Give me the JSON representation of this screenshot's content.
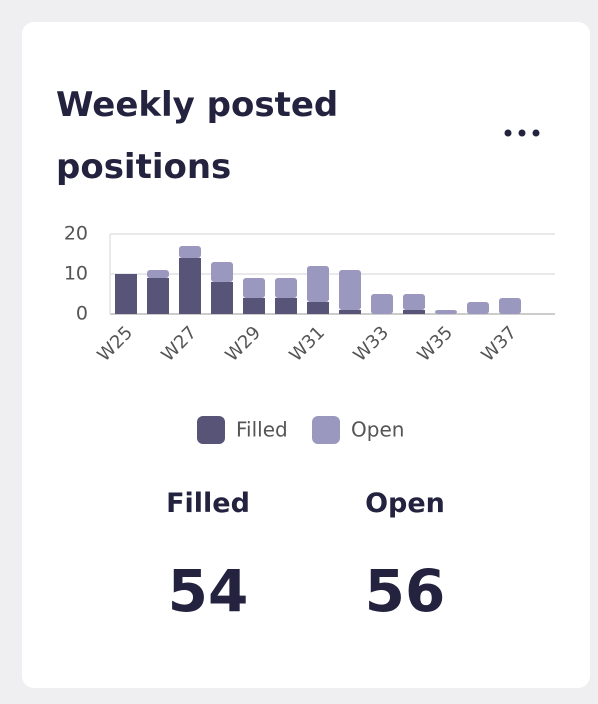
{
  "card": {
    "title": "Weekly posted positions"
  },
  "chart_data": {
    "type": "bar",
    "stacked": true,
    "categories": [
      "W25",
      null,
      "W27",
      null,
      "W29",
      null,
      "W31",
      null,
      "W33",
      null,
      "W35",
      null,
      "W37"
    ],
    "series": [
      {
        "name": "Filled",
        "color": "#575477",
        "values": [
          10,
          9,
          14,
          8,
          4,
          4,
          3,
          1,
          0,
          1,
          0,
          0,
          0
        ]
      },
      {
        "name": "Open",
        "color": "#9b98c0",
        "values": [
          0,
          2,
          3,
          5,
          5,
          5,
          9,
          10,
          5,
          4,
          1,
          3,
          4
        ]
      }
    ],
    "ylim": [
      0,
      20
    ],
    "yticks": [
      0,
      10,
      20
    ],
    "grid": true,
    "legend": "bottom"
  },
  "summary": [
    {
      "label": "Filled",
      "value": 54
    },
    {
      "label": "Open",
      "value": 56
    }
  ]
}
